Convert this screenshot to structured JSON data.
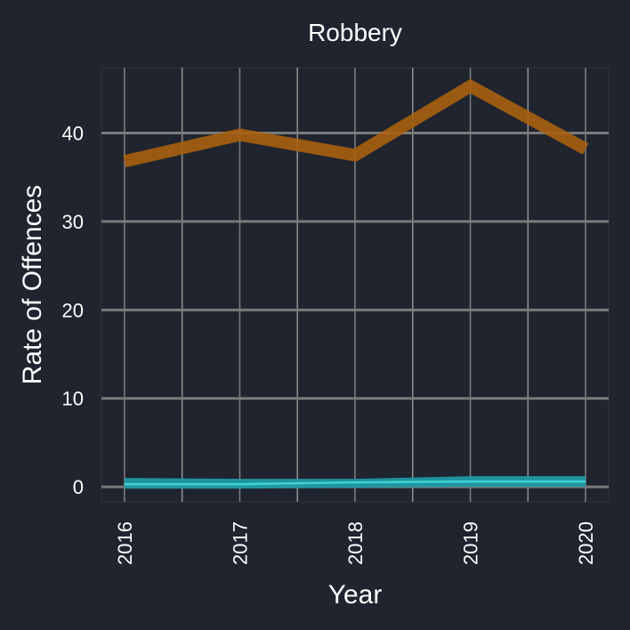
{
  "colors": {
    "background": "#20242e",
    "panel_border": "#2f333c",
    "grid_major": "#7a7a7a",
    "grid_minor": "#8c8c8c",
    "series_upper": "#a8600f",
    "series_lower": "#1f9aa5",
    "series_lower_line": "#3fd3d1",
    "text": "#ffffff"
  },
  "chart_data": {
    "type": "line",
    "title": "Robbery",
    "xlabel": "Year",
    "ylabel": "Rate of Offences",
    "x": [
      2016,
      2017,
      2018,
      2019,
      2020
    ],
    "x_tick_labels": [
      "2016",
      "2017",
      "2018",
      "2019",
      "2020"
    ],
    "y_ticks": [
      0,
      10,
      20,
      30,
      40
    ],
    "y_tick_labels": [
      "0",
      "10",
      "20",
      "30",
      "40"
    ],
    "xlim": [
      2015.8,
      2020.2
    ],
    "ylim": [
      -1.7,
      47.4
    ],
    "grid": true,
    "legend": "none",
    "series": [
      {
        "values": [
          36.8,
          39.8,
          37.5,
          45.3,
          38.2
        ],
        "color": "#a8600f"
      },
      {
        "values": [
          0.3,
          0.3,
          0.5,
          0.6,
          0.6
        ],
        "band": [
          [
            -0.2,
            1.0
          ],
          [
            -0.2,
            0.9
          ],
          [
            -0.1,
            0.9
          ],
          [
            0.0,
            1.2
          ],
          [
            0.0,
            1.2
          ]
        ],
        "color": "#1f9aa5"
      }
    ]
  }
}
